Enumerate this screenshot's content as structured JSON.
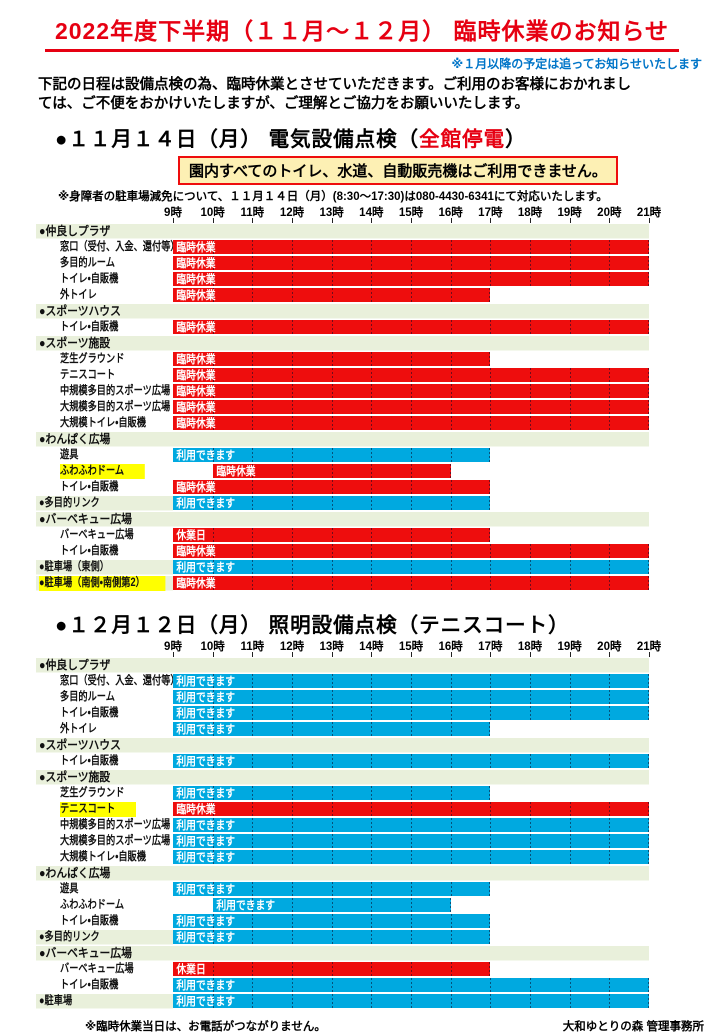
{
  "header": {
    "title": "2022年度下半期（１１月～１２月） 臨時休業のお知らせ",
    "subnote": "※１月以降の予定は追ってお知らせいたします"
  },
  "intro": {
    "line1": "下記の日程は設備点検の為、臨時休業とさせていただきます。ご利用のお客様におかれまし",
    "line2": "ては、ご不便をおかけいたしますが、ご理解とご協力をお願いいたします。"
  },
  "section1": {
    "heading_pre": "●１１月１４日（月） 電気設備点検（",
    "heading_em": "全館停電",
    "heading_post": "）",
    "warning": "園内すべてのトイレ、水道、自動販売機はご利用できません。",
    "note": "※身障者の駐車場減免について、１１月１４日（月）(8:30～17:30)は080-4430-6341にて対応いたします。"
  },
  "section2": {
    "heading": "●１２月１２日（月） 照明設備点検（テニスコート）"
  },
  "footer": {
    "left": "※臨時休業当日は、お電話がつながりません。",
    "right": "大和ゆとりの森 管理事務所"
  },
  "colors": {
    "closed_red": "#ee0d0d",
    "open_blue": "#00a9e0",
    "category_green": "#e9f0db",
    "highlight_yellow": "#ffff00",
    "title_red": "#e60012",
    "subnote_blue": "#0075c8",
    "warnbox_fill": "#fdf0b4"
  },
  "chart_data": [
    {
      "type": "gantt",
      "title": "１１月１４日（月）電気設備点検（全館停電）",
      "hours": [
        "9時",
        "10時",
        "11時",
        "12時",
        "13時",
        "14時",
        "15時",
        "16時",
        "17時",
        "18時",
        "19時",
        "20時",
        "21時"
      ],
      "x_range": [
        9,
        21
      ],
      "status_colors": {
        "臨時休業": "red",
        "休業日": "red",
        "利用できます": "blue"
      },
      "rows": [
        {
          "type": "header",
          "label": "●仲良しプラザ"
        },
        {
          "type": "item",
          "label": "窓口（受付、入金、還付等）",
          "bar": {
            "start": 9,
            "end": 21,
            "color": "red",
            "text": "臨時休業"
          }
        },
        {
          "type": "item",
          "label": "多目的ルーム",
          "bar": {
            "start": 9,
            "end": 21,
            "color": "red",
            "text": "臨時休業"
          }
        },
        {
          "type": "item",
          "label": "トイレ・自販機",
          "bar": {
            "start": 9,
            "end": 21,
            "color": "red",
            "text": "臨時休業"
          }
        },
        {
          "type": "item",
          "label": "外トイレ",
          "bar": {
            "start": 9,
            "end": 17,
            "color": "red",
            "text": "臨時休業"
          }
        },
        {
          "type": "header",
          "label": "●スポーツハウス"
        },
        {
          "type": "item",
          "label": "トイレ・自販機",
          "bar": {
            "start": 9,
            "end": 21,
            "color": "red",
            "text": "臨時休業"
          }
        },
        {
          "type": "header",
          "label": "●スポーツ施設"
        },
        {
          "type": "item",
          "label": "芝生グラウンド",
          "bar": {
            "start": 9,
            "end": 17,
            "color": "red",
            "text": "臨時休業"
          }
        },
        {
          "type": "item",
          "label": "テニスコート",
          "bar": {
            "start": 9,
            "end": 21,
            "color": "red",
            "text": "臨時休業"
          }
        },
        {
          "type": "item",
          "label": "中規模多目的スポーツ広場",
          "bar": {
            "start": 9,
            "end": 21,
            "color": "red",
            "text": "臨時休業"
          }
        },
        {
          "type": "item",
          "label": "大規模多目的スポーツ広場",
          "bar": {
            "start": 9,
            "end": 21,
            "color": "red",
            "text": "臨時休業"
          }
        },
        {
          "type": "item",
          "label": "大規模トイレ・自販機",
          "bar": {
            "start": 9,
            "end": 21,
            "color": "red",
            "text": "臨時休業"
          }
        },
        {
          "type": "header",
          "label": "●わんぱく広場"
        },
        {
          "type": "item",
          "label": "遊具",
          "bar": {
            "start": 9,
            "end": 17,
            "color": "blue",
            "text": "利用できます"
          }
        },
        {
          "type": "item",
          "label": "ふわふわドーム",
          "highlight": true,
          "bar": {
            "start": 10,
            "end": 16,
            "color": "red",
            "text": "臨時休業"
          }
        },
        {
          "type": "item",
          "label": "トイレ・自販機",
          "bar": {
            "start": 9,
            "end": 17,
            "color": "red",
            "text": "臨時休業"
          }
        },
        {
          "type": "catitem",
          "label": "●多目的リンク",
          "bar": {
            "start": 9,
            "end": 17,
            "color": "blue",
            "text": "利用できます"
          }
        },
        {
          "type": "header",
          "label": "●バーベキュー広場"
        },
        {
          "type": "item",
          "label": "バーベキュー広場",
          "bar": {
            "start": 9,
            "end": 17,
            "color": "red",
            "text": "休業日"
          }
        },
        {
          "type": "item",
          "label": "トイレ・自販機",
          "bar": {
            "start": 9,
            "end": 21,
            "color": "red",
            "text": "臨時休業"
          }
        },
        {
          "type": "catitem",
          "label": "●駐車場（東側）",
          "bar": {
            "start": 9,
            "end": 21,
            "color": "blue",
            "text": "利用できます"
          }
        },
        {
          "type": "catitem",
          "label": "●駐車場（南側・南側第2）",
          "highlight": true,
          "bar": {
            "start": 9,
            "end": 21,
            "color": "red",
            "text": "臨時休業"
          }
        }
      ]
    },
    {
      "type": "gantt",
      "title": "１２月１２日（月）照明設備点検（テニスコート）",
      "hours": [
        "9時",
        "10時",
        "11時",
        "12時",
        "13時",
        "14時",
        "15時",
        "16時",
        "17時",
        "18時",
        "19時",
        "20時",
        "21時"
      ],
      "x_range": [
        9,
        21
      ],
      "status_colors": {
        "臨時休業": "red",
        "休業日": "red",
        "利用できます": "blue"
      },
      "rows": [
        {
          "type": "header",
          "label": "●仲良しプラザ"
        },
        {
          "type": "item",
          "label": "窓口（受付、入金、還付等）",
          "bar": {
            "start": 9,
            "end": 21,
            "color": "blue",
            "text": "利用できます"
          }
        },
        {
          "type": "item",
          "label": "多目的ルーム",
          "bar": {
            "start": 9,
            "end": 21,
            "color": "blue",
            "text": "利用できます"
          }
        },
        {
          "type": "item",
          "label": "トイレ・自販機",
          "bar": {
            "start": 9,
            "end": 21,
            "color": "blue",
            "text": "利用できます"
          }
        },
        {
          "type": "item",
          "label": "外トイレ",
          "bar": {
            "start": 9,
            "end": 17,
            "color": "blue",
            "text": "利用できます"
          }
        },
        {
          "type": "header",
          "label": "●スポーツハウス"
        },
        {
          "type": "item",
          "label": "トイレ・自販機",
          "bar": {
            "start": 9,
            "end": 21,
            "color": "blue",
            "text": "利用できます"
          }
        },
        {
          "type": "header",
          "label": "●スポーツ施設"
        },
        {
          "type": "item",
          "label": "芝生グラウンド",
          "bar": {
            "start": 9,
            "end": 17,
            "color": "blue",
            "text": "利用できます"
          }
        },
        {
          "type": "item",
          "label": "テニスコート",
          "highlight": true,
          "bar": {
            "start": 9,
            "end": 21,
            "color": "red",
            "text": "臨時休業"
          }
        },
        {
          "type": "item",
          "label": "中規模多目的スポーツ広場",
          "bar": {
            "start": 9,
            "end": 21,
            "color": "blue",
            "text": "利用できます"
          }
        },
        {
          "type": "item",
          "label": "大規模多目的スポーツ広場",
          "bar": {
            "start": 9,
            "end": 21,
            "color": "blue",
            "text": "利用できます"
          }
        },
        {
          "type": "item",
          "label": "大規模トイレ・自販機",
          "bar": {
            "start": 9,
            "end": 21,
            "color": "blue",
            "text": "利用できます"
          }
        },
        {
          "type": "header",
          "label": "●わんぱく広場"
        },
        {
          "type": "item",
          "label": "遊具",
          "bar": {
            "start": 9,
            "end": 17,
            "color": "blue",
            "text": "利用できます"
          }
        },
        {
          "type": "item",
          "label": "ふわふわドーム",
          "bar": {
            "start": 10,
            "end": 16,
            "color": "blue",
            "text": "利用できます"
          }
        },
        {
          "type": "item",
          "label": "トイレ・自販機",
          "bar": {
            "start": 9,
            "end": 17,
            "color": "blue",
            "text": "利用できます"
          }
        },
        {
          "type": "catitem",
          "label": "●多目的リンク",
          "bar": {
            "start": 9,
            "end": 17,
            "color": "blue",
            "text": "利用できます"
          }
        },
        {
          "type": "header",
          "label": "●バーベキュー広場"
        },
        {
          "type": "item",
          "label": "バーベキュー広場",
          "bar": {
            "start": 9,
            "end": 17,
            "color": "red",
            "text": "休業日"
          }
        },
        {
          "type": "item",
          "label": "トイレ・自販機",
          "bar": {
            "start": 9,
            "end": 21,
            "color": "blue",
            "text": "利用できます"
          }
        },
        {
          "type": "catitem",
          "label": "●駐車場",
          "bar": {
            "start": 9,
            "end": 21,
            "color": "blue",
            "text": "利用できます"
          }
        }
      ]
    }
  ]
}
